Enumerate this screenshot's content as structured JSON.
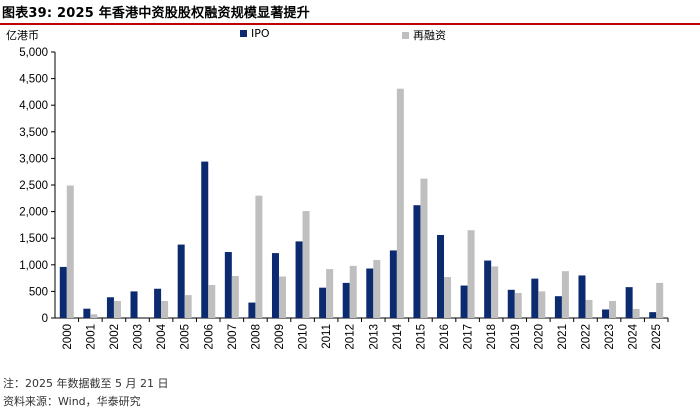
{
  "figure": {
    "title": "图表39:  2025 年香港中资股股权融资规模显著提升",
    "note": "注：2025 年数据截至 5 月 21 日",
    "source": "资料来源：Wind，华泰研究"
  },
  "chart_data": {
    "type": "bar",
    "unit_label": "亿港币",
    "categories": [
      "2000",
      "2001",
      "2002",
      "2003",
      "2004",
      "2005",
      "2006",
      "2007",
      "2008",
      "2009",
      "2010",
      "2011",
      "2012",
      "2013",
      "2014",
      "2015",
      "2016",
      "2017",
      "2018",
      "2019",
      "2020",
      "2021",
      "2022",
      "2023",
      "2024",
      "2025"
    ],
    "series": [
      {
        "name": "IPO",
        "color": "#0b2a6f",
        "values": [
          960,
          175,
          390,
          500,
          550,
          1380,
          2940,
          1240,
          290,
          1220,
          1440,
          570,
          660,
          930,
          1270,
          2120,
          1560,
          610,
          1080,
          530,
          740,
          410,
          800,
          160,
          580,
          110
        ]
      },
      {
        "name": "再融资",
        "color": "#bfbfbf",
        "values": [
          2490,
          70,
          320,
          0,
          320,
          430,
          620,
          790,
          2300,
          780,
          2010,
          920,
          980,
          1090,
          4310,
          2620,
          770,
          1650,
          970,
          470,
          500,
          880,
          340,
          320,
          170,
          660
        ]
      }
    ],
    "ylim": [
      0,
      5000
    ],
    "yticks": [
      "0",
      "500",
      "1,000",
      "1,500",
      "2,000",
      "2,500",
      "3,000",
      "3,500",
      "4,000",
      "4,500",
      "5,000"
    ],
    "ytick_values": [
      0,
      500,
      1000,
      1500,
      2000,
      2500,
      3000,
      3500,
      4000,
      4500,
      5000
    ],
    "legend_position": "top",
    "grid": false
  }
}
